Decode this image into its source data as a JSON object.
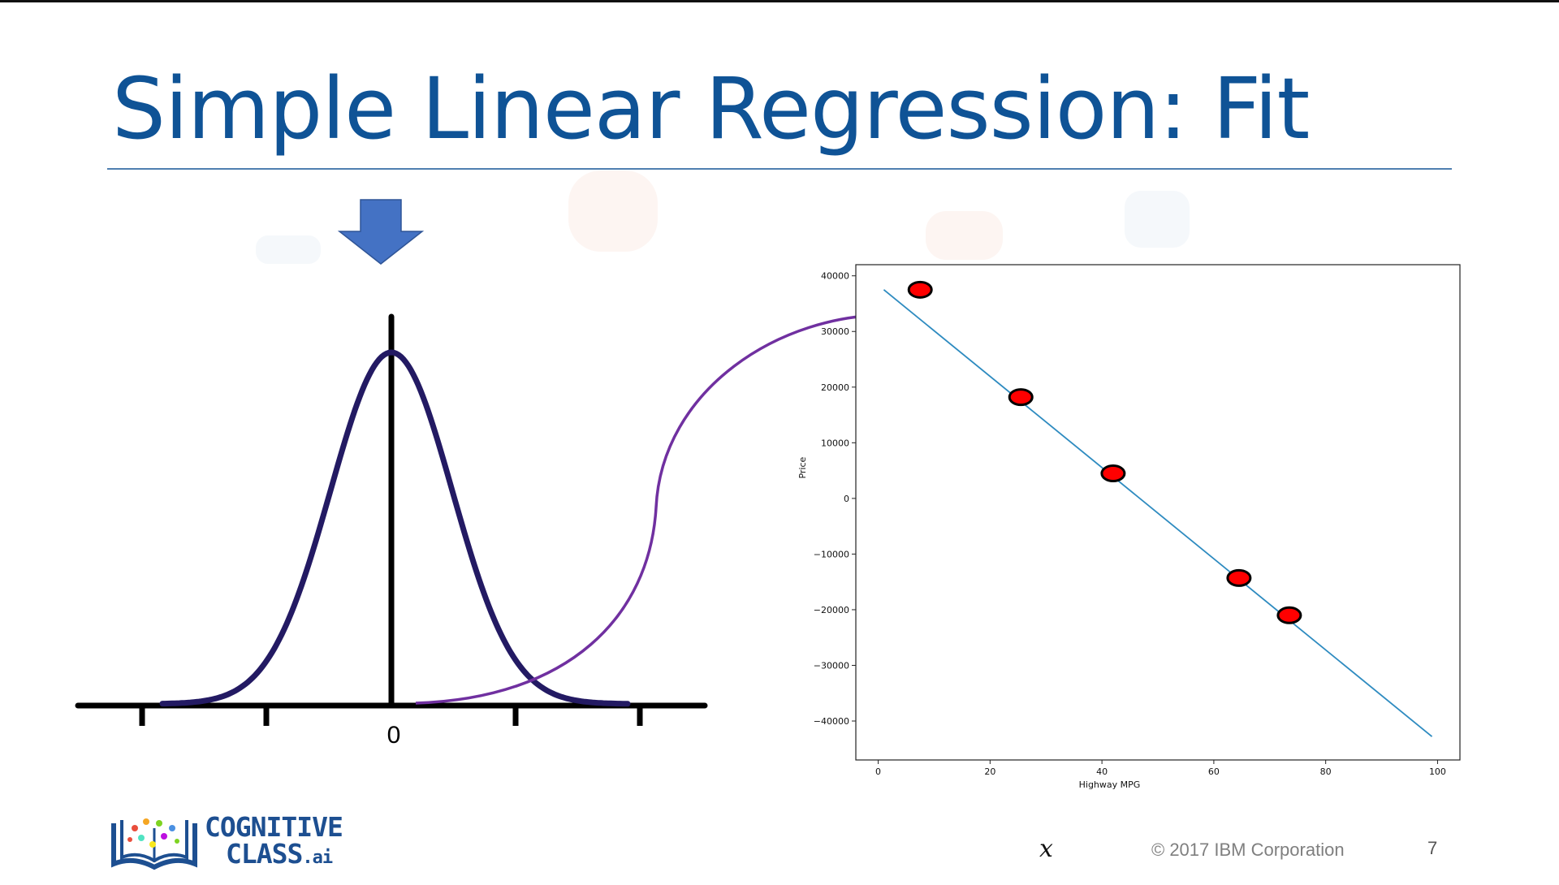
{
  "slide": {
    "title": "Simple Linear Regression: Fit",
    "footer_copyright": "© 2017 IBM Corporation",
    "page_number": "7",
    "x_variable": "x"
  },
  "logo": {
    "line1": "COGNITIVE",
    "line2": "CLASS",
    "suffix": ".ai"
  },
  "distribution": {
    "zero_label": "0"
  },
  "colors": {
    "title": "#0f5396",
    "curve": "#231a63",
    "arrow_down": "#4472c4",
    "connector": "#7030a0",
    "fit_line": "#2e8bc0",
    "points": "#ff0000"
  },
  "chart_data": {
    "type": "scatter",
    "xlabel": "Highway MPG",
    "ylabel": "Price",
    "xlim": [
      -4,
      104
    ],
    "ylim": [
      -47000,
      42000
    ],
    "x_ticks": [
      0,
      20,
      40,
      60,
      80,
      100
    ],
    "y_ticks": [
      40000,
      30000,
      20000,
      10000,
      0,
      -10000,
      -20000,
      -30000,
      -40000
    ],
    "x_tick_labels": [
      "0",
      "20",
      "40",
      "60",
      "80",
      "100"
    ],
    "y_tick_labels": [
      "40000",
      "30000",
      "20000",
      "10000",
      "0",
      "−10000",
      "−20000",
      "−30000",
      "−40000"
    ],
    "points": [
      {
        "x": 7.5,
        "y": 37500
      },
      {
        "x": 25.5,
        "y": 18200
      },
      {
        "x": 42,
        "y": 4500
      },
      {
        "x": 64.5,
        "y": -14300
      },
      {
        "x": 73.5,
        "y": -21000
      }
    ],
    "fit_line": [
      {
        "x": 1,
        "y": 37500
      },
      {
        "x": 99,
        "y": -42800
      }
    ],
    "grid": false
  }
}
